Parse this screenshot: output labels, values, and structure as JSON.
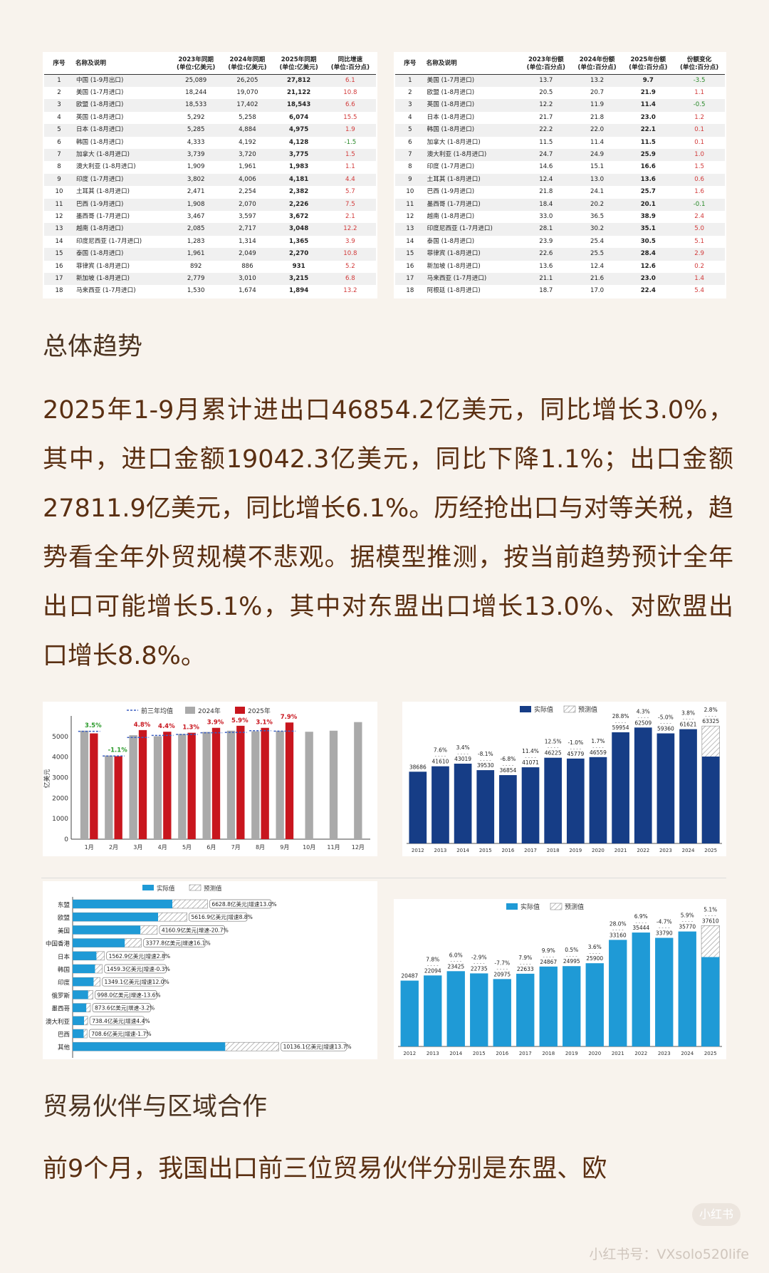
{
  "table_left": {
    "headers": [
      "序号",
      "名称及说明",
      "2023年同期\n(单位:亿美元)",
      "2024年同期\n(单位:亿美元)",
      "2025年同期\n(单位:亿美元)",
      "同比增速\n(单位:百分点)"
    ],
    "rows": [
      [
        "1",
        "中国 (1-9月出口)",
        "25,089",
        "26,205",
        "27,812",
        "6.1"
      ],
      [
        "2",
        "美国 (1-7月进口)",
        "18,244",
        "19,070",
        "21,122",
        "10.8"
      ],
      [
        "3",
        "欧盟 (1-8月进口)",
        "18,533",
        "17,402",
        "18,543",
        "6.6"
      ],
      [
        "4",
        "英国 (1-8月进口)",
        "5,292",
        "5,258",
        "6,074",
        "15.5"
      ],
      [
        "5",
        "日本 (1-8月进口)",
        "5,285",
        "4,884",
        "4,975",
        "1.9"
      ],
      [
        "6",
        "韩国 (1-8月进口)",
        "4,333",
        "4,192",
        "4,128",
        "-1.5"
      ],
      [
        "7",
        "加拿大 (1-8月进口)",
        "3,739",
        "3,720",
        "3,775",
        "1.5"
      ],
      [
        "8",
        "澳大利亚 (1-8月进口)",
        "1,909",
        "1,961",
        "1,983",
        "1.1"
      ],
      [
        "9",
        "印度 (1-7月进口)",
        "3,802",
        "4,006",
        "4,181",
        "4.4"
      ],
      [
        "10",
        "土耳其 (1-8月进口)",
        "2,471",
        "2,254",
        "2,382",
        "5.7"
      ],
      [
        "11",
        "巴西 (1-9月进口)",
        "1,908",
        "2,070",
        "2,226",
        "7.5"
      ],
      [
        "12",
        "墨西哥 (1-7月进口)",
        "3,467",
        "3,597",
        "3,672",
        "2.1"
      ],
      [
        "13",
        "越南 (1-8月进口)",
        "2,085",
        "2,717",
        "3,048",
        "12.2"
      ],
      [
        "14",
        "印度尼西亚 (1-7月进口)",
        "1,283",
        "1,314",
        "1,365",
        "3.9"
      ],
      [
        "15",
        "泰国 (1-8月进口)",
        "1,961",
        "2,049",
        "2,270",
        "10.8"
      ],
      [
        "16",
        "菲律宾 (1-8月进口)",
        "892",
        "886",
        "931",
        "5.2"
      ],
      [
        "17",
        "新加坡 (1-8月进口)",
        "2,779",
        "3,010",
        "3,215",
        "6.8"
      ],
      [
        "18",
        "马来西亚 (1-7月进口)",
        "1,530",
        "1,674",
        "1,894",
        "13.2"
      ]
    ]
  },
  "table_right": {
    "headers": [
      "序号",
      "名称及说明",
      "2023年份额\n(单位:百分点)",
      "2024年份额\n(单位:百分点)",
      "2025年份额\n(单位:百分点)",
      "份额变化\n(单位:百分点)"
    ],
    "rows": [
      [
        "1",
        "美国 (1-7月进口)",
        "13.7",
        "13.2",
        "9.7",
        "-3.5"
      ],
      [
        "2",
        "欧盟 (1-8月进口)",
        "20.5",
        "20.7",
        "21.9",
        "1.1"
      ],
      [
        "3",
        "英国 (1-8月进口)",
        "12.2",
        "11.9",
        "11.4",
        "-0.5"
      ],
      [
        "4",
        "日本 (1-8月进口)",
        "21.7",
        "21.8",
        "23.0",
        "1.2"
      ],
      [
        "5",
        "韩国 (1-8月进口)",
        "22.2",
        "22.0",
        "22.1",
        "0.1"
      ],
      [
        "6",
        "加拿大 (1-8月进口)",
        "11.5",
        "11.4",
        "11.5",
        "0.1"
      ],
      [
        "7",
        "澳大利亚 (1-8月进口)",
        "24.7",
        "24.9",
        "25.9",
        "1.0"
      ],
      [
        "8",
        "印度 (1-7月进口)",
        "14.6",
        "15.1",
        "16.6",
        "1.5"
      ],
      [
        "9",
        "土耳其 (1-8月进口)",
        "12.4",
        "13.0",
        "13.6",
        "0.6"
      ],
      [
        "10",
        "巴西 (1-9月进口)",
        "21.8",
        "24.1",
        "25.7",
        "1.6"
      ],
      [
        "11",
        "墨西哥 (1-7月进口)",
        "18.4",
        "20.2",
        "20.1",
        "-0.1"
      ],
      [
        "12",
        "越南 (1-8月进口)",
        "33.0",
        "36.5",
        "38.9",
        "2.4"
      ],
      [
        "13",
        "印度尼西亚 (1-7月进口)",
        "28.1",
        "30.2",
        "35.1",
        "5.0"
      ],
      [
        "14",
        "泰国 (1-8月进口)",
        "23.9",
        "25.4",
        "30.5",
        "5.1"
      ],
      [
        "15",
        "菲律宾 (1-8月进口)",
        "22.6",
        "25.5",
        "28.4",
        "2.9"
      ],
      [
        "16",
        "新加坡 (1-8月进口)",
        "13.6",
        "12.4",
        "12.6",
        "0.2"
      ],
      [
        "17",
        "马来西亚 (1-7月进口)",
        "21.1",
        "21.6",
        "23.0",
        "1.4"
      ],
      [
        "18",
        "阿根廷 (1-8月进口)",
        "18.7",
        "17.0",
        "22.4",
        "5.4"
      ]
    ]
  },
  "section1": {
    "heading": "总体趋势",
    "paragraph": "2025年1-9月累计进出口46854.2亿美元，同比增长3.0%，其中，进口金额19042.3亿美元，同比下降1.1%；出口金额27811.9亿美元，同比增长6.1%。历经抢出口与对等关税，趋势看全年外贸规模不悲观。据模型推测，按当前趋势预计全年出口可能增长5.1%，其中对东盟出口增长13.0%、对欧盟出口增长8.8%。"
  },
  "section2": {
    "heading": "贸易伙伴与区域合作",
    "paragraph": "前9个月，我国出口前三位贸易伙伴分别是东盟、欧"
  },
  "watermark": {
    "text": "小红书号：VXsolo520life",
    "logo_text": "小红书"
  },
  "colors": {
    "red": "#c8161e",
    "gray": "#aaaaaa",
    "navy": "#163d86",
    "cyan": "#1f9ad6",
    "dash": "#3b5fc0"
  },
  "chart_data": [
    {
      "type": "bar",
      "legend": [
        "前三年均值",
        "2024年",
        "2025年"
      ],
      "categories": [
        "1月",
        "2月",
        "3月",
        "4月",
        "5月",
        "6月",
        "7月",
        "8月",
        "9月",
        "10月",
        "11月",
        "12月"
      ],
      "series": [
        {
          "name": "前三年均值",
          "values": [
            5250,
            4050,
            4950,
            5050,
            5100,
            5180,
            5200,
            5280,
            5260,
            null,
            null,
            null
          ]
        },
        {
          "name": "2024年",
          "values": [
            5280,
            4070,
            5060,
            5010,
            5120,
            5220,
            5280,
            5250,
            5260,
            5230,
            5280,
            5700
          ]
        },
        {
          "name": "2025年",
          "values": [
            5150,
            4040,
            5310,
            5230,
            5180,
            5420,
            5520,
            5420,
            5680,
            null,
            null,
            null
          ]
        }
      ],
      "growth_labels": [
        "3.5%",
        "-1.1%",
        "4.8%",
        "4.4%",
        "1.3%",
        "3.9%",
        "5.9%",
        "3.1%",
        "7.9%"
      ],
      "ylabel": "亿美元",
      "yticks": [
        0,
        1000,
        2000,
        3000,
        4000,
        5000
      ],
      "ylim": [
        0,
        6000
      ]
    },
    {
      "type": "bar",
      "legend": [
        "实际值",
        "预测值"
      ],
      "categories": [
        "2012",
        "2013",
        "2014",
        "2015",
        "2016",
        "2017",
        "2018",
        "2019",
        "2020",
        "2021",
        "2022",
        "2023",
        "2024",
        "2025"
      ],
      "values": [
        38686,
        41610,
        43019,
        39530,
        36854,
        41071,
        46225,
        45779,
        46559,
        59954,
        62509,
        59360,
        61621,
        63325
      ],
      "actual_2025": 46854,
      "growth_labels": [
        "",
        "7.6%",
        "3.4%",
        "-8.1%",
        "-6.8%",
        "11.4%",
        "12.5%",
        "-1.0%",
        "1.7%",
        "28.8%",
        "4.3%",
        "-5.0%",
        "3.8%",
        "2.8%"
      ],
      "ylim": [
        0,
        68000
      ]
    },
    {
      "type": "bar",
      "orientation": "horizontal",
      "legend": [
        "实际值",
        "预测值"
      ],
      "categories": [
        "东盟",
        "欧盟",
        "美国",
        "中国香港",
        "日本",
        "韩国",
        "印度",
        "俄罗斯",
        "墨西哥",
        "澳大利亚",
        "巴西",
        "其他"
      ],
      "forecast": [
        6628.8,
        5616.9,
        4160.9,
        3377.8,
        1562.9,
        1459.3,
        1349.1,
        998.0,
        873.6,
        738.4,
        708.6,
        10136.1
      ],
      "actual": [
        4900,
        4200,
        3330,
        2560,
        1170,
        1100,
        1030,
        760,
        670,
        560,
        540,
        7500
      ],
      "labels": [
        "6628.8亿美元|增速13.0%",
        "5616.9亿美元|增速8.8%",
        "4160.9亿美元|增速-20.7%",
        "3377.8亿美元|增速16.1%",
        "1562.9亿美元|增速2.8%",
        "1459.3亿美元|增速-0.3%",
        "1349.1亿美元|增速12.0%",
        "998.0亿美元|增速-13.6%",
        "873.6亿美元|增速-3.2%",
        "738.4亿美元|增速4.4%",
        "708.6亿美元|增速-1.7%",
        "10136.1亿美元|增速13.7%"
      ]
    },
    {
      "type": "bar",
      "legend": [
        "实际值",
        "预测值"
      ],
      "categories": [
        "2012",
        "2013",
        "2014",
        "2015",
        "2016",
        "2017",
        "2018",
        "2019",
        "2020",
        "2021",
        "2022",
        "2023",
        "2024",
        "2025"
      ],
      "values": [
        20487,
        22094,
        23425,
        22735,
        20975,
        22633,
        24867,
        24995,
        25900,
        33160,
        35444,
        33790,
        35770,
        37610
      ],
      "actual_2025": 27812,
      "growth_labels": [
        "",
        "7.8%",
        "6.0%",
        "-2.9%",
        "-7.7%",
        "7.9%",
        "9.9%",
        "0.5%",
        "3.6%",
        "28.0%",
        "6.9%",
        "-4.7%",
        "5.9%",
        "5.1%"
      ],
      "ylim": [
        0,
        41000
      ]
    }
  ]
}
